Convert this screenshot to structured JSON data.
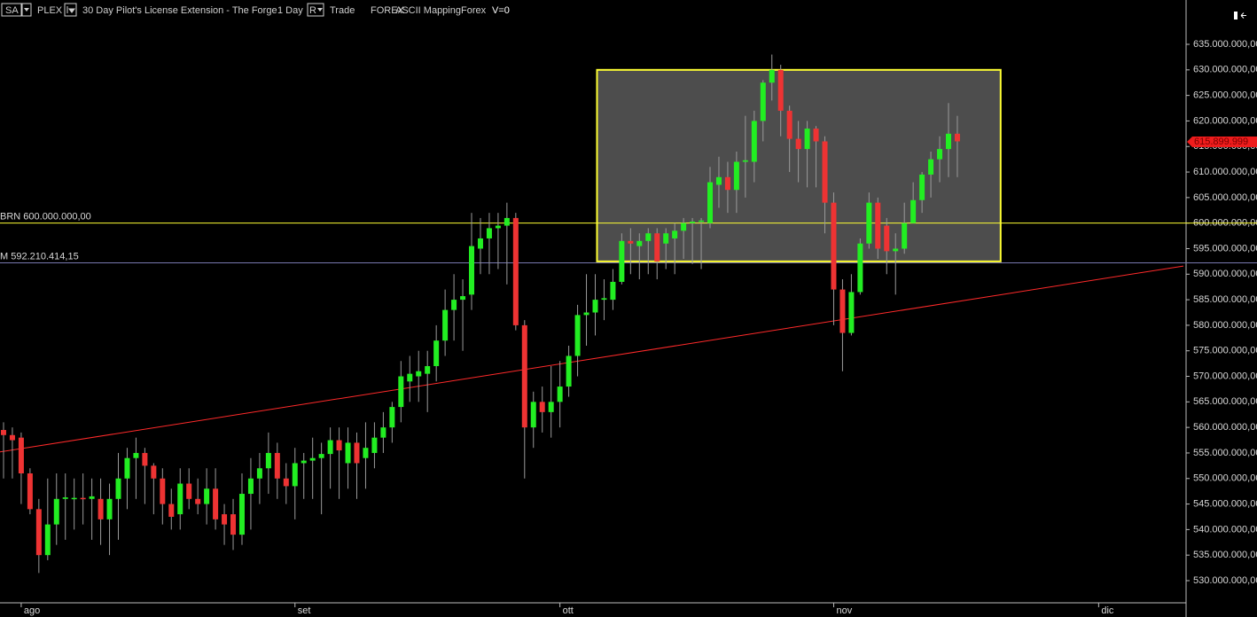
{
  "toolbar": {
    "symbol": "SA",
    "item": "PLEX",
    "title": "30 Day Pilot's License Extension - The Forge",
    "interval": "1 Day",
    "mode": "R",
    "labels": [
      "Trade",
      "FOREX",
      "ASCII Mapping",
      "Forex",
      "V=0"
    ]
  },
  "chart_data": {
    "type": "candlestick",
    "up_color": "#22ee22",
    "down_color": "#ee3333",
    "open": [
      559500000,
      558500000,
      558000000,
      551000000,
      544000000,
      535000000,
      541000000,
      546000000,
      546000000,
      546200000,
      546000000,
      546000000,
      542000000,
      546000000,
      550000000,
      554000000,
      555000000,
      552500000,
      550000000,
      545000000,
      543000000,
      549000000,
      546000000,
      545000000,
      548000000,
      543000000,
      543000000,
      539000000,
      547000000,
      550000000,
      552000000,
      555000000,
      550000000,
      548500000,
      553000000,
      553500000,
      554000000,
      554800000,
      557500000,
      553000000,
      557000000,
      554000000,
      555000000,
      558000000,
      560000000,
      564000000,
      569000000,
      570000000,
      570500000,
      572000000,
      577000000,
      583000000,
      585000000,
      586000000,
      595000000,
      597000000,
      599000000,
      599500000,
      601000000,
      580000000,
      560000000,
      565000000,
      563000000,
      565000000,
      568000000,
      574000000,
      582000000,
      582500000,
      585000000,
      585000000,
      588500000,
      596500000,
      595500000,
      596500000,
      598000000,
      596000000,
      597000000,
      598500000,
      600000000,
      600300000,
      600000000,
      607500000,
      609000000,
      606500000,
      612000000,
      612000000,
      620000000,
      627500000,
      630000000,
      622000000,
      616500000,
      614500000,
      618500000,
      616000000,
      604000000,
      587000000,
      578500000,
      586500000,
      596000000,
      604000000,
      599500000,
      594500000,
      595000000,
      600000000,
      604500000,
      609500000,
      612500000,
      614500000,
      617500000
    ],
    "high": [
      561000000,
      560000000,
      559000000,
      552000000,
      546000000,
      550000000,
      551000000,
      551000000,
      550000000,
      551000000,
      550000000,
      550000000,
      549000000,
      555000000,
      556000000,
      558000000,
      556000000,
      553000000,
      552000000,
      548000000,
      552000000,
      552000000,
      550000000,
      552000000,
      552000000,
      545000000,
      546000000,
      551000000,
      554000000,
      555000000,
      559000000,
      557000000,
      553000000,
      556000000,
      555000000,
      558000000,
      557000000,
      560000000,
      560000000,
      560000000,
      559000000,
      561000000,
      561000000,
      563000000,
      565000000,
      573000000,
      574000000,
      575000000,
      575000000,
      580000000,
      587000000,
      590000000,
      589000000,
      602000000,
      601000000,
      602000000,
      602000000,
      604000000,
      602000000,
      581000000,
      567000000,
      568000000,
      572000000,
      573000000,
      576000000,
      584000000,
      590000000,
      590000000,
      589000000,
      591000000,
      598000000,
      599000000,
      598000000,
      599000000,
      599000000,
      599000000,
      600000000,
      601000000,
      601000000,
      601000000,
      611000000,
      613000000,
      612000000,
      614000000,
      621000000,
      622000000,
      628000000,
      633000000,
      631000000,
      623000000,
      620000000,
      620000000,
      619000000,
      617000000,
      606000000,
      589000000,
      590000000,
      597000000,
      606000000,
      605000000,
      601000000,
      598000000,
      604000000,
      608000000,
      610000000,
      614000000,
      617000000,
      623500000,
      621000000
    ],
    "low": [
      550000000,
      550000000,
      545000000,
      543000000,
      531500000,
      534000000,
      537000000,
      538000000,
      540000000,
      541000000,
      538000000,
      537000000,
      535000000,
      538000000,
      544000000,
      546000000,
      545000000,
      543000000,
      541000000,
      540000000,
      540000000,
      544000000,
      543000000,
      541000000,
      540000000,
      537000000,
      536000000,
      537000000,
      540000000,
      545000000,
      547000000,
      546000000,
      545000000,
      542000000,
      546000000,
      546000000,
      543000000,
      548000000,
      546000000,
      548000000,
      546000000,
      548000000,
      552000000,
      555000000,
      557000000,
      561000000,
      565000000,
      565000000,
      563000000,
      569000000,
      574000000,
      577000000,
      575000000,
      583000000,
      590000000,
      590000000,
      591000000,
      588000000,
      579000000,
      550000000,
      556000000,
      559000000,
      558000000,
      560000000,
      566000000,
      570000000,
      576000000,
      578000000,
      581000000,
      583000000,
      588000000,
      590000000,
      589000000,
      590000000,
      589000000,
      591000000,
      590000000,
      593000000,
      592000000,
      591000000,
      599000000,
      603000000,
      602000000,
      602000000,
      605000000,
      608000000,
      616000000,
      624000000,
      617000000,
      610000000,
      608000000,
      607000000,
      607000000,
      598000000,
      580000000,
      571000000,
      578000000,
      586000000,
      595000000,
      593000000,
      590000000,
      586000000,
      594000000,
      600000000,
      602000000,
      605000000,
      608000000,
      609000000,
      609000000
    ],
    "close": [
      558500000,
      557500000,
      551000000,
      544000000,
      535000000,
      541000000,
      546000000,
      546300000,
      546200000,
      546000000,
      546500000,
      542000000,
      546000000,
      550000000,
      554000000,
      555000000,
      552500000,
      550000000,
      545000000,
      542500000,
      549000000,
      546000000,
      545000000,
      548000000,
      542000000,
      541000000,
      539000000,
      547000000,
      550000000,
      552000000,
      555000000,
      550000000,
      548500000,
      553000000,
      553500000,
      554000000,
      554800000,
      557500000,
      555500000,
      557000000,
      553000000,
      556000000,
      558000000,
      560000000,
      564000000,
      570000000,
      570500000,
      571000000,
      572000000,
      577000000,
      583000000,
      585000000,
      585700000,
      595500000,
      597000000,
      599000000,
      599500000,
      601000000,
      580000000,
      560000000,
      565000000,
      563000000,
      565000000,
      568000000,
      574000000,
      582000000,
      582500000,
      585000000,
      585300000,
      588500000,
      596500000,
      596000000,
      596500000,
      598000000,
      592500000,
      598000000,
      598500000,
      600000000,
      600300000,
      600500000,
      608000000,
      609000000,
      606500000,
      612000000,
      612300000,
      620000000,
      627500000,
      630000000,
      622000000,
      616500000,
      614500000,
      618500000,
      616000000,
      604000000,
      587000000,
      578500000,
      586500000,
      596000000,
      604000000,
      595000000,
      594500000,
      595000000,
      600000000,
      604500000,
      609500000,
      612500000,
      614500000,
      617500000,
      616000000
    ],
    "xlim": [
      -0.4,
      133.9
    ],
    "xticks": [
      {
        "value": 2,
        "label": "ago"
      },
      {
        "value": 33,
        "label": "set"
      },
      {
        "value": 63,
        "label": "ott"
      },
      {
        "value": 94,
        "label": "nov"
      },
      {
        "value": 124,
        "label": "dic"
      }
    ],
    "ylim": [
      525660000,
      643680000
    ],
    "yticks": [
      {
        "value": 530000000,
        "label": "530.000.000,00"
      },
      {
        "value": 535000000,
        "label": "535.000.000,00"
      },
      {
        "value": 540000000,
        "label": "540.000.000,00"
      },
      {
        "value": 545000000,
        "label": "545.000.000,00"
      },
      {
        "value": 550000000,
        "label": "550.000.000,00"
      },
      {
        "value": 555000000,
        "label": "555.000.000,00"
      },
      {
        "value": 560000000,
        "label": "560.000.000,00"
      },
      {
        "value": 565000000,
        "label": "565.000.000,00"
      },
      {
        "value": 570000000,
        "label": "570.000.000,00"
      },
      {
        "value": 575000000,
        "label": "575.000.000,00"
      },
      {
        "value": 580000000,
        "label": "580.000.000,00"
      },
      {
        "value": 585000000,
        "label": "585.000.000,00"
      },
      {
        "value": 590000000,
        "label": "590.000.000,00"
      },
      {
        "value": 595000000,
        "label": "595.000.000,00"
      },
      {
        "value": 600000000,
        "label": "600.000.000,00"
      },
      {
        "value": 605000000,
        "label": "605.000.000,00"
      },
      {
        "value": 610000000,
        "label": "610.000.000,00"
      },
      {
        "value": 615000000,
        "label": "615.000.000,00"
      },
      {
        "value": 620000000,
        "label": "620.000.000,00"
      },
      {
        "value": 625000000,
        "label": "625.000.000,00"
      },
      {
        "value": 630000000,
        "label": "630.000.000,00"
      },
      {
        "value": 635000000,
        "label": "635.000.000,00"
      }
    ],
    "hlines": [
      {
        "value": 600000000,
        "label": "BRN 600.000.000,00",
        "color": "#ffff33"
      },
      {
        "value": 592210414.15,
        "label": "M 592.210.414,15",
        "color": "#7878b0"
      }
    ],
    "rectangle": {
      "x": [
        67.2,
        112.9
      ],
      "y": [
        592500000,
        630000000
      ],
      "color": "#ffff33"
    },
    "trendline": {
      "x": [
        -0.4,
        133.6
      ],
      "y": [
        555200000,
        591600000
      ],
      "color": "#ff2a2a"
    },
    "last_price": {
      "value": 615899999,
      "label": "615.899.999",
      "color": "#ee1c1c"
    }
  }
}
